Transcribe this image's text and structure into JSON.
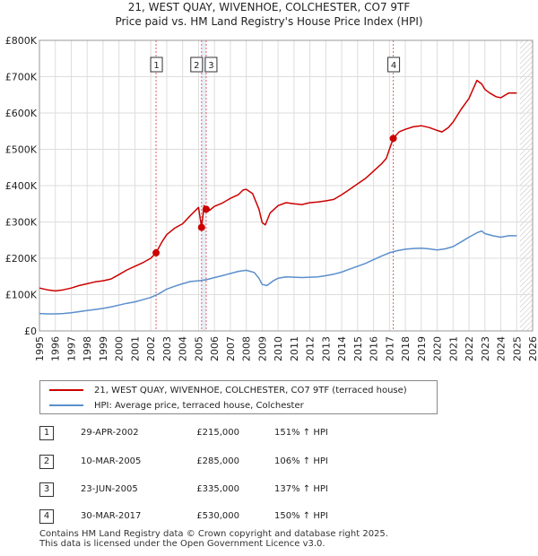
{
  "header": {
    "title": "21, WEST QUAY, WIVENHOE, COLCHESTER, CO7 9TF",
    "subtitle": "Price paid vs. HM Land Registry's House Price Index (HPI)"
  },
  "chart_data": {
    "type": "line",
    "title": "21, WEST QUAY, WIVENHOE, COLCHESTER, CO7 9TF",
    "subtitle": "Price paid vs. HM Land Registry's House Price Index (HPI)",
    "xlim": [
      1995,
      2026
    ],
    "ylim": [
      0,
      800000
    ],
    "y_ticks": [
      0,
      100000,
      200000,
      300000,
      400000,
      500000,
      600000,
      700000,
      800000
    ],
    "y_tick_labels": [
      "£0",
      "£100K",
      "£200K",
      "£300K",
      "£400K",
      "£500K",
      "£600K",
      "£700K",
      "£800K"
    ],
    "x_ticks": [
      1995,
      1996,
      1997,
      1998,
      1999,
      2000,
      2001,
      2002,
      2003,
      2004,
      2005,
      2006,
      2007,
      2008,
      2009,
      2010,
      2011,
      2012,
      2013,
      2014,
      2015,
      2016,
      2017,
      2018,
      2019,
      2020,
      2021,
      2022,
      2023,
      2024,
      2025,
      2026
    ],
    "grid": true,
    "colors": {
      "property": "#cc0000",
      "hpi": "#5b8fcc",
      "marker_line": "#e06060",
      "band": "#e8eef8"
    },
    "series": [
      {
        "name": "21, WEST QUAY, WIVENHOE, COLCHESTER, CO7 9TF (terraced house)",
        "x": [
          1995.0,
          1995.5,
          1996.0,
          1996.5,
          1997.0,
          1997.5,
          1998.0,
          1998.5,
          1999.0,
          1999.5,
          2000.0,
          2000.5,
          2001.0,
          2001.5,
          2002.0,
          2002.33,
          2002.7,
          2003.0,
          2003.5,
          2004.0,
          2004.5,
          2005.0,
          2005.19,
          2005.35,
          2005.48,
          2005.7,
          2006.0,
          2006.5,
          2007.0,
          2007.5,
          2007.8,
          2008.0,
          2008.4,
          2008.8,
          2009.0,
          2009.2,
          2009.5,
          2010.0,
          2010.5,
          2011.0,
          2011.5,
          2012.0,
          2012.5,
          2013.0,
          2013.5,
          2014.0,
          2014.5,
          2015.0,
          2015.5,
          2016.0,
          2016.5,
          2016.8,
          2017.0,
          2017.24,
          2017.6,
          2018.0,
          2018.5,
          2019.0,
          2019.5,
          2020.0,
          2020.3,
          2020.7,
          2021.0,
          2021.5,
          2022.0,
          2022.5,
          2022.8,
          2023.0,
          2023.3,
          2023.7,
          2024.0,
          2024.5,
          2025.0
        ],
        "values": [
          118000,
          113000,
          110000,
          113000,
          118000,
          125000,
          130000,
          135000,
          138000,
          143000,
          155000,
          168000,
          178000,
          188000,
          200000,
          215000,
          245000,
          265000,
          283000,
          295000,
          318000,
          340000,
          285000,
          345000,
          335000,
          332000,
          343000,
          352000,
          365000,
          375000,
          388000,
          390000,
          378000,
          335000,
          298000,
          292000,
          325000,
          345000,
          353000,
          350000,
          348000,
          353000,
          355000,
          358000,
          362000,
          375000,
          390000,
          405000,
          420000,
          440000,
          460000,
          475000,
          500000,
          530000,
          548000,
          555000,
          562000,
          565000,
          560000,
          552000,
          548000,
          560000,
          575000,
          610000,
          640000,
          690000,
          680000,
          665000,
          655000,
          645000,
          642000,
          655000,
          655000
        ]
      },
      {
        "name": "HPI: Average price, terraced house, Colchester",
        "x": [
          1995.0,
          1995.5,
          1996.0,
          1996.5,
          1997.0,
          1997.5,
          1998.0,
          1998.5,
          1999.0,
          1999.5,
          2000.0,
          2000.5,
          2001.0,
          2001.5,
          2002.0,
          2002.5,
          2003.0,
          2003.5,
          2004.0,
          2004.5,
          2005.0,
          2005.5,
          2006.0,
          2006.5,
          2007.0,
          2007.5,
          2008.0,
          2008.5,
          2008.8,
          2009.0,
          2009.3,
          2009.7,
          2010.0,
          2010.5,
          2011.0,
          2011.5,
          2012.0,
          2012.5,
          2013.0,
          2013.5,
          2014.0,
          2014.5,
          2015.0,
          2015.5,
          2016.0,
          2016.5,
          2017.0,
          2017.5,
          2018.0,
          2018.5,
          2019.0,
          2019.5,
          2020.0,
          2020.5,
          2021.0,
          2021.5,
          2022.0,
          2022.5,
          2022.8,
          2023.0,
          2023.5,
          2024.0,
          2024.5,
          2025.0
        ],
        "values": [
          48000,
          47000,
          47000,
          48000,
          50000,
          53000,
          56000,
          59000,
          62000,
          66000,
          71000,
          76000,
          80000,
          86000,
          92000,
          102000,
          115000,
          123000,
          130000,
          136000,
          138000,
          141000,
          147000,
          152000,
          158000,
          164000,
          167000,
          161000,
          145000,
          128000,
          125000,
          138000,
          145000,
          149000,
          148000,
          147000,
          148000,
          149000,
          152000,
          156000,
          162000,
          170000,
          178000,
          186000,
          196000,
          206000,
          215000,
          221000,
          225000,
          227000,
          228000,
          226000,
          223000,
          226000,
          232000,
          245000,
          258000,
          270000,
          275000,
          268000,
          262000,
          258000,
          262000,
          262000
        ]
      }
    ],
    "sales": [
      {
        "id": "1",
        "x": 2002.33,
        "price": 215000,
        "date": "29-APR-2002",
        "price_label": "£215,000",
        "hpi": "151% ↑ HPI"
      },
      {
        "id": "2",
        "x": 2005.19,
        "price": 285000,
        "date": "10-MAR-2005",
        "price_label": "£285,000",
        "hpi": "106% ↑ HPI"
      },
      {
        "id": "3",
        "x": 2005.48,
        "price": 335000,
        "date": "23-JUN-2005",
        "price_label": "£335,000",
        "hpi": "137% ↑ HPI"
      },
      {
        "id": "4",
        "x": 2017.24,
        "price": 530000,
        "date": "30-MAR-2017",
        "price_label": "£530,000",
        "hpi": "150% ↑ HPI"
      }
    ],
    "future_from": 2025.2
  },
  "legend": {
    "property": "21, WEST QUAY, WIVENHOE, COLCHESTER, CO7 9TF (terraced house)",
    "hpi": "HPI: Average price, terraced house, Colchester"
  },
  "footer": {
    "line1": "Contains HM Land Registry data © Crown copyright and database right 2025.",
    "line2": "This data is licensed under the Open Government Licence v3.0."
  }
}
